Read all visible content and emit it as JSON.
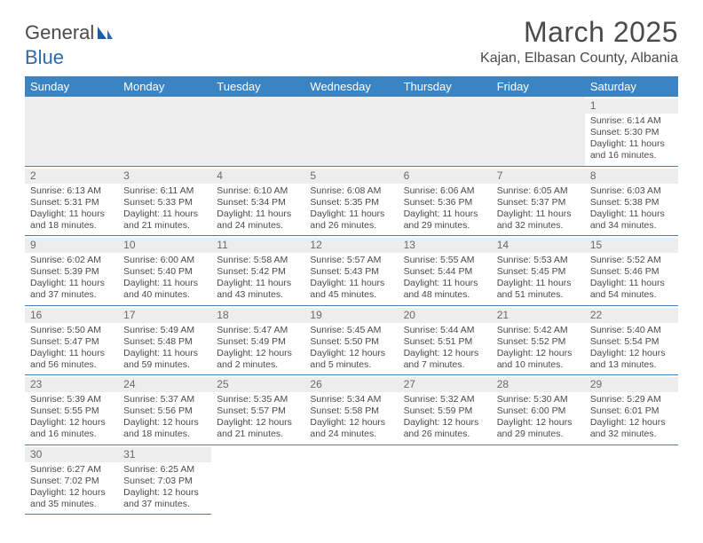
{
  "brand": {
    "part1": "General",
    "part2": "Blue"
  },
  "title": "March 2025",
  "location": "Kajan, Elbasan County, Albania",
  "colors": {
    "header_bg": "#3b84c4",
    "header_text": "#ffffff",
    "daynum_bg": "#ededed",
    "text": "#4a4a4a",
    "rule": "#3b84c4"
  },
  "typography": {
    "title_fontsize": 32,
    "location_fontsize": 16,
    "header_fontsize": 13,
    "cell_fontsize": 10.5
  },
  "day_headers": [
    "Sunday",
    "Monday",
    "Tuesday",
    "Wednesday",
    "Thursday",
    "Friday",
    "Saturday"
  ],
  "weeks": [
    [
      null,
      null,
      null,
      null,
      null,
      null,
      {
        "n": "1",
        "sr": "Sunrise: 6:14 AM",
        "ss": "Sunset: 5:30 PM",
        "dl": "Daylight: 11 hours and 16 minutes."
      }
    ],
    [
      {
        "n": "2",
        "sr": "Sunrise: 6:13 AM",
        "ss": "Sunset: 5:31 PM",
        "dl": "Daylight: 11 hours and 18 minutes."
      },
      {
        "n": "3",
        "sr": "Sunrise: 6:11 AM",
        "ss": "Sunset: 5:33 PM",
        "dl": "Daylight: 11 hours and 21 minutes."
      },
      {
        "n": "4",
        "sr": "Sunrise: 6:10 AM",
        "ss": "Sunset: 5:34 PM",
        "dl": "Daylight: 11 hours and 24 minutes."
      },
      {
        "n": "5",
        "sr": "Sunrise: 6:08 AM",
        "ss": "Sunset: 5:35 PM",
        "dl": "Daylight: 11 hours and 26 minutes."
      },
      {
        "n": "6",
        "sr": "Sunrise: 6:06 AM",
        "ss": "Sunset: 5:36 PM",
        "dl": "Daylight: 11 hours and 29 minutes."
      },
      {
        "n": "7",
        "sr": "Sunrise: 6:05 AM",
        "ss": "Sunset: 5:37 PM",
        "dl": "Daylight: 11 hours and 32 minutes."
      },
      {
        "n": "8",
        "sr": "Sunrise: 6:03 AM",
        "ss": "Sunset: 5:38 PM",
        "dl": "Daylight: 11 hours and 34 minutes."
      }
    ],
    [
      {
        "n": "9",
        "sr": "Sunrise: 6:02 AM",
        "ss": "Sunset: 5:39 PM",
        "dl": "Daylight: 11 hours and 37 minutes."
      },
      {
        "n": "10",
        "sr": "Sunrise: 6:00 AM",
        "ss": "Sunset: 5:40 PM",
        "dl": "Daylight: 11 hours and 40 minutes."
      },
      {
        "n": "11",
        "sr": "Sunrise: 5:58 AM",
        "ss": "Sunset: 5:42 PM",
        "dl": "Daylight: 11 hours and 43 minutes."
      },
      {
        "n": "12",
        "sr": "Sunrise: 5:57 AM",
        "ss": "Sunset: 5:43 PM",
        "dl": "Daylight: 11 hours and 45 minutes."
      },
      {
        "n": "13",
        "sr": "Sunrise: 5:55 AM",
        "ss": "Sunset: 5:44 PM",
        "dl": "Daylight: 11 hours and 48 minutes."
      },
      {
        "n": "14",
        "sr": "Sunrise: 5:53 AM",
        "ss": "Sunset: 5:45 PM",
        "dl": "Daylight: 11 hours and 51 minutes."
      },
      {
        "n": "15",
        "sr": "Sunrise: 5:52 AM",
        "ss": "Sunset: 5:46 PM",
        "dl": "Daylight: 11 hours and 54 minutes."
      }
    ],
    [
      {
        "n": "16",
        "sr": "Sunrise: 5:50 AM",
        "ss": "Sunset: 5:47 PM",
        "dl": "Daylight: 11 hours and 56 minutes."
      },
      {
        "n": "17",
        "sr": "Sunrise: 5:49 AM",
        "ss": "Sunset: 5:48 PM",
        "dl": "Daylight: 11 hours and 59 minutes."
      },
      {
        "n": "18",
        "sr": "Sunrise: 5:47 AM",
        "ss": "Sunset: 5:49 PM",
        "dl": "Daylight: 12 hours and 2 minutes."
      },
      {
        "n": "19",
        "sr": "Sunrise: 5:45 AM",
        "ss": "Sunset: 5:50 PM",
        "dl": "Daylight: 12 hours and 5 minutes."
      },
      {
        "n": "20",
        "sr": "Sunrise: 5:44 AM",
        "ss": "Sunset: 5:51 PM",
        "dl": "Daylight: 12 hours and 7 minutes."
      },
      {
        "n": "21",
        "sr": "Sunrise: 5:42 AM",
        "ss": "Sunset: 5:52 PM",
        "dl": "Daylight: 12 hours and 10 minutes."
      },
      {
        "n": "22",
        "sr": "Sunrise: 5:40 AM",
        "ss": "Sunset: 5:54 PM",
        "dl": "Daylight: 12 hours and 13 minutes."
      }
    ],
    [
      {
        "n": "23",
        "sr": "Sunrise: 5:39 AM",
        "ss": "Sunset: 5:55 PM",
        "dl": "Daylight: 12 hours and 16 minutes."
      },
      {
        "n": "24",
        "sr": "Sunrise: 5:37 AM",
        "ss": "Sunset: 5:56 PM",
        "dl": "Daylight: 12 hours and 18 minutes."
      },
      {
        "n": "25",
        "sr": "Sunrise: 5:35 AM",
        "ss": "Sunset: 5:57 PM",
        "dl": "Daylight: 12 hours and 21 minutes."
      },
      {
        "n": "26",
        "sr": "Sunrise: 5:34 AM",
        "ss": "Sunset: 5:58 PM",
        "dl": "Daylight: 12 hours and 24 minutes."
      },
      {
        "n": "27",
        "sr": "Sunrise: 5:32 AM",
        "ss": "Sunset: 5:59 PM",
        "dl": "Daylight: 12 hours and 26 minutes."
      },
      {
        "n": "28",
        "sr": "Sunrise: 5:30 AM",
        "ss": "Sunset: 6:00 PM",
        "dl": "Daylight: 12 hours and 29 minutes."
      },
      {
        "n": "29",
        "sr": "Sunrise: 5:29 AM",
        "ss": "Sunset: 6:01 PM",
        "dl": "Daylight: 12 hours and 32 minutes."
      }
    ],
    [
      {
        "n": "30",
        "sr": "Sunrise: 6:27 AM",
        "ss": "Sunset: 7:02 PM",
        "dl": "Daylight: 12 hours and 35 minutes."
      },
      {
        "n": "31",
        "sr": "Sunrise: 6:25 AM",
        "ss": "Sunset: 7:03 PM",
        "dl": "Daylight: 12 hours and 37 minutes."
      },
      null,
      null,
      null,
      null,
      null
    ]
  ]
}
